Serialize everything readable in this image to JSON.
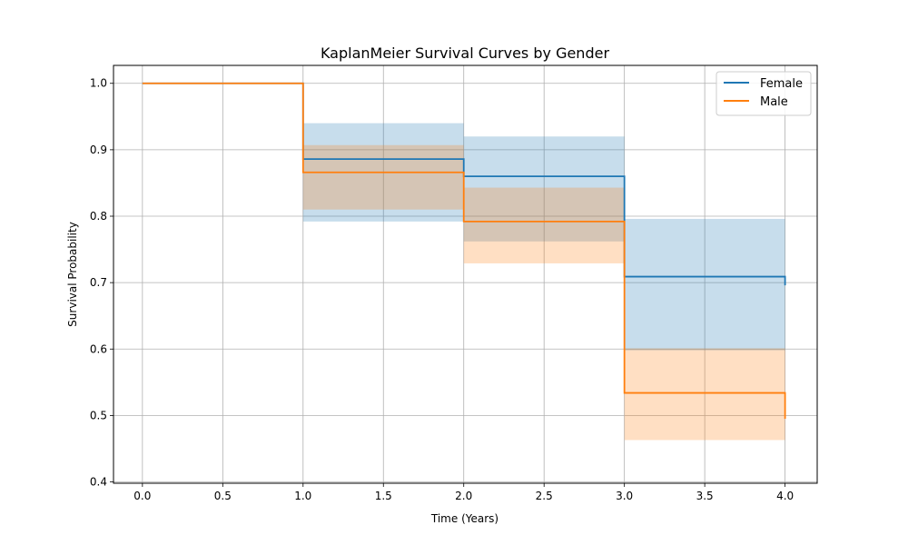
{
  "chart_data": {
    "type": "line",
    "title": "KaplanMeier Survival Curves by Gender",
    "xlabel": "Time (Years)",
    "ylabel": "Survival Probability",
    "xlim": [
      -0.18,
      4.2
    ],
    "ylim": [
      0.398,
      1.027
    ],
    "xticks": [
      "0.0",
      "0.5",
      "1.0",
      "1.5",
      "2.0",
      "2.5",
      "3.0",
      "3.5",
      "4.0"
    ],
    "yticks": [
      "0.4",
      "0.5",
      "0.6",
      "0.7",
      "0.8",
      "0.9",
      "1.0"
    ],
    "grid": true,
    "legend_position": "top-right",
    "series": [
      {
        "name": "Female",
        "color": "#1f77b4",
        "steps": [
          {
            "x0": 0,
            "x1": 1,
            "y": 1.0,
            "ci_low": 1.0,
            "ci_high": 1.0
          },
          {
            "x0": 1,
            "x1": 2,
            "y": 0.886,
            "ci_low": 0.792,
            "ci_high": 0.94
          },
          {
            "x0": 2,
            "x1": 3,
            "y": 0.86,
            "ci_low": 0.762,
            "ci_high": 0.92
          },
          {
            "x0": 3,
            "x1": 4,
            "y": 0.709,
            "ci_low": 0.598,
            "ci_high": 0.796
          }
        ],
        "end": {
          "x": 4,
          "y": 0.696
        }
      },
      {
        "name": "Male",
        "color": "#ff7f0e",
        "steps": [
          {
            "x0": 0,
            "x1": 1,
            "y": 1.0,
            "ci_low": 1.0,
            "ci_high": 1.0
          },
          {
            "x0": 1,
            "x1": 2,
            "y": 0.866,
            "ci_low": 0.81,
            "ci_high": 0.907
          },
          {
            "x0": 2,
            "x1": 3,
            "y": 0.792,
            "ci_low": 0.729,
            "ci_high": 0.843
          },
          {
            "x0": 3,
            "x1": 4,
            "y": 0.534,
            "ci_low": 0.463,
            "ci_high": 0.601
          }
        ],
        "end": {
          "x": 4,
          "y": 0.495
        }
      }
    ]
  }
}
